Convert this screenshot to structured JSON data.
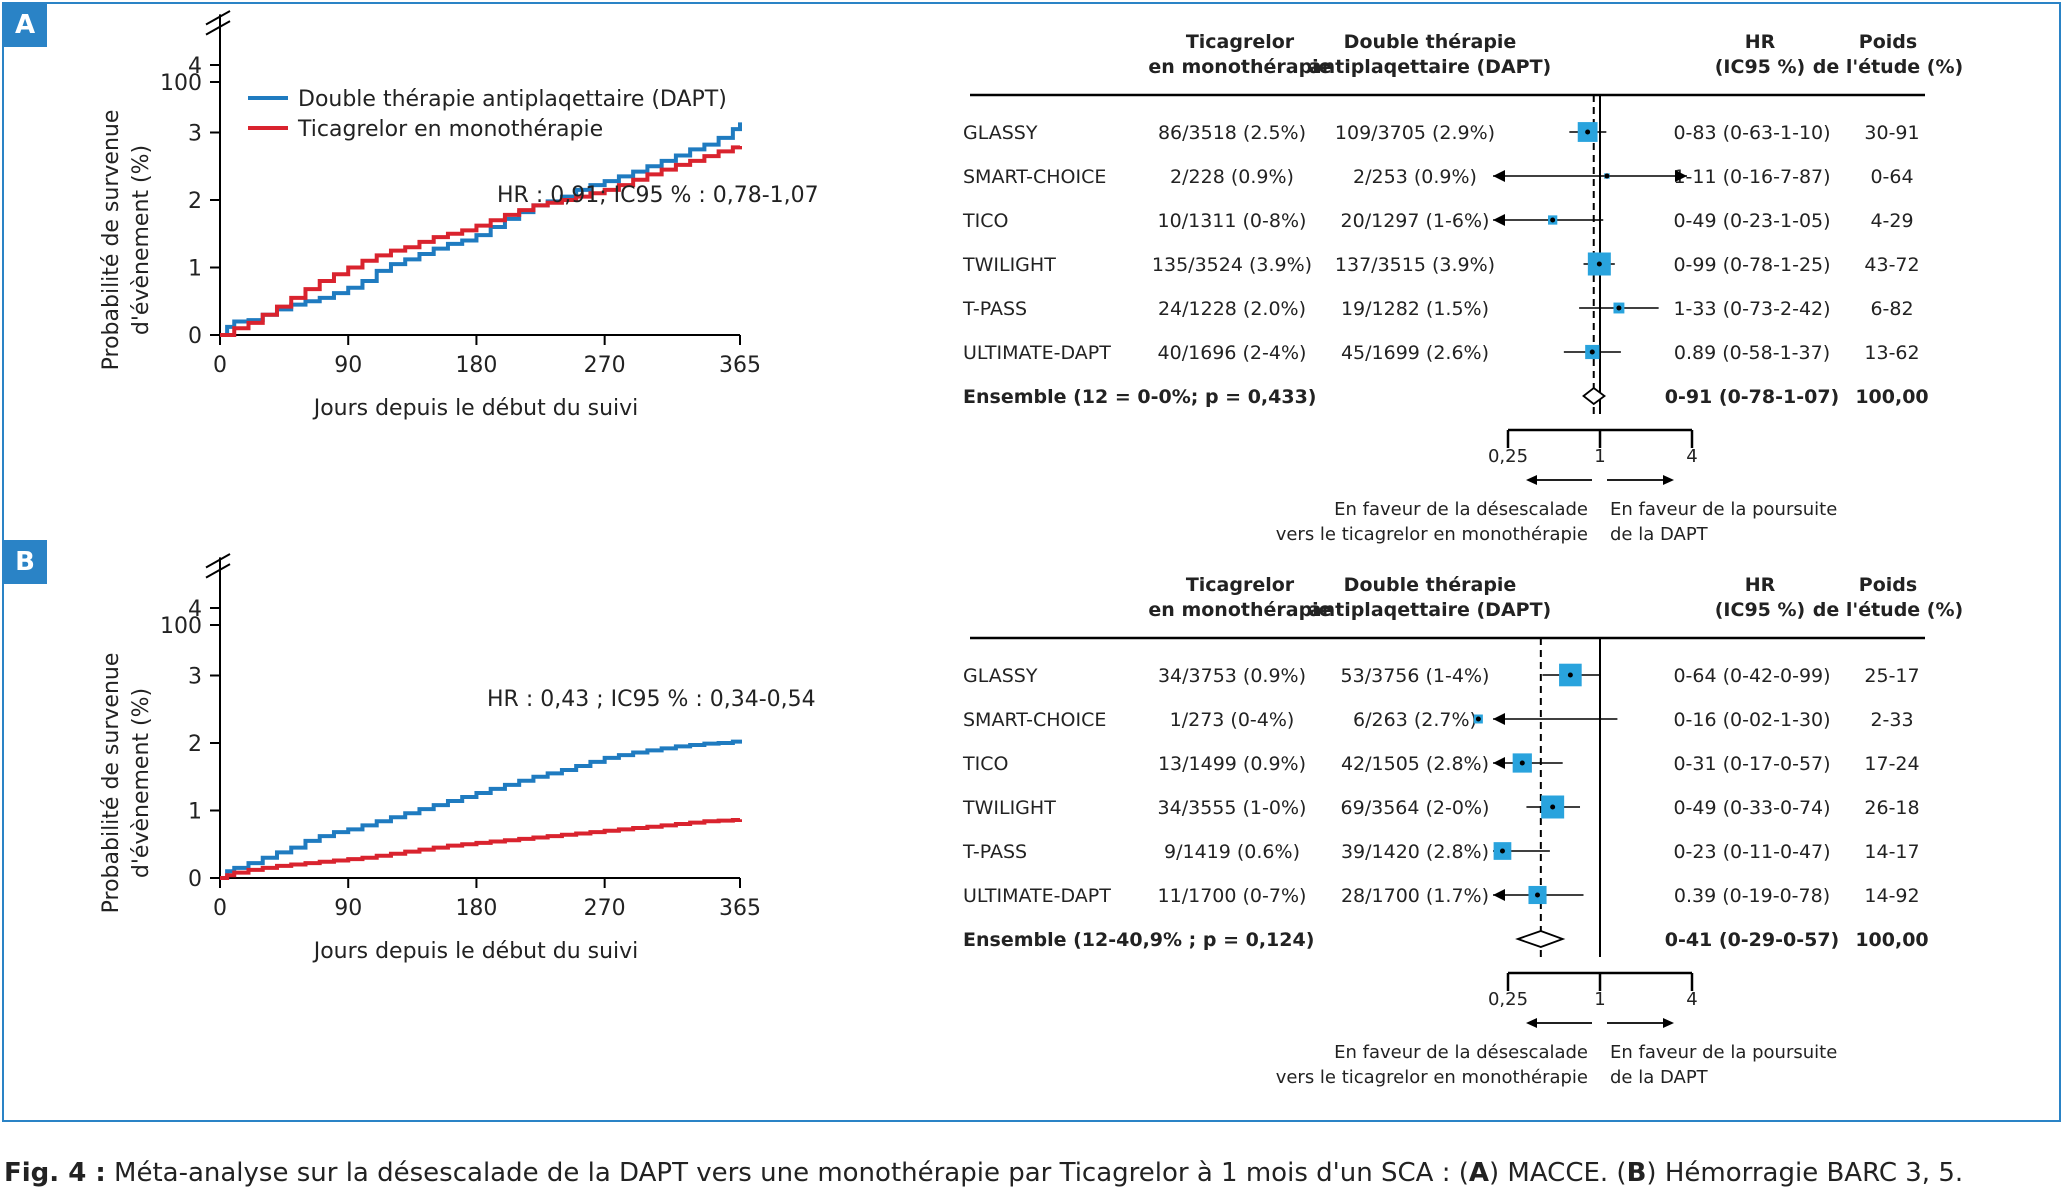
{
  "panels": [
    {
      "label": "A",
      "km": {
        "ylabel_line1": "Probabilité de survenue",
        "ylabel_line2": "d'évènement (%)",
        "xlabel": "Jours depuis le début du suivi",
        "hr_text": "HR : 0,91; IC95 % : 0,78-1,07",
        "legend": [
          "Double thérapie antiplaqettaire (DAPT)",
          "Ticagrelor en monothérapie"
        ]
      },
      "forest": {
        "headers": {
          "ticagrelor": [
            "Ticagrelor",
            "en monothérapie"
          ],
          "dapt": [
            "Double thérapie",
            "antiplaqettaire (DAPT)"
          ],
          "hr": [
            "HR",
            "(IC95 %)"
          ],
          "poids": [
            "Poids",
            "de l'étude (%)"
          ]
        },
        "rows": [
          {
            "study": "GLASSY",
            "tica": "86/3518 (2.5%)",
            "dapt": "109/3705 (2.9%)",
            "hr_text": "0-83 (0-63-1-10)",
            "weight_text": "30-91"
          },
          {
            "study": "SMART-CHOICE",
            "tica": "2/228 (0.9%)",
            "dapt": "2/253 (0.9%)",
            "hr_text": "1-11 (0-16-7-87)",
            "weight_text": "0-64"
          },
          {
            "study": "TICO",
            "tica": "10/1311 (0-8%)",
            "dapt": "20/1297 (1-6%)",
            "hr_text": "0-49 (0-23-1-05)",
            "weight_text": "4-29"
          },
          {
            "study": "TWILIGHT",
            "tica": "135/3524 (3.9%)",
            "dapt": "137/3515 (3.9%)",
            "hr_text": "0-99 (0-78-1-25)",
            "weight_text": "43-72"
          },
          {
            "study": "T-PASS",
            "tica": "24/1228 (2.0%)",
            "dapt": "19/1282 (1.5%)",
            "hr_text": "1-33 (0-73-2-42)",
            "weight_text": "6-82"
          },
          {
            "study": "ULTIMATE-DAPT",
            "tica": "40/1696 (2-4%)",
            "dapt": "45/1699 (2.6%)",
            "hr_text": "0.89 (0-58-1-37)",
            "weight_text": "13-62"
          }
        ],
        "overall": {
          "label": "Ensemble (12 = 0-0%; p = 0,433)",
          "hr_text": "0-91 (0-78-1-07)",
          "weight_text": "100,00"
        },
        "axis_ticks": [
          "0,25",
          "1",
          "4"
        ],
        "favor_left": [
          "En faveur de la désescalade",
          "vers le ticagrelor en monothérapie"
        ],
        "favor_right": [
          "En faveur de la poursuite",
          "de la DAPT"
        ]
      }
    },
    {
      "label": "B",
      "km": {
        "ylabel_line1": "Probabilité de survenue",
        "ylabel_line2": "d'évènement (%)",
        "xlabel": "Jours depuis le début du suivi",
        "hr_text": "HR : 0,43 ; IC95 % : 0,34-0,54",
        "legend": []
      },
      "forest": {
        "headers": {
          "ticagrelor": [
            "Ticagrelor",
            "en monothérapie"
          ],
          "dapt": [
            "Double thérapie",
            "antiplaqettaire (DAPT)"
          ],
          "hr": [
            "HR",
            "(IC95 %)"
          ],
          "poids": [
            "Poids",
            "de l'étude (%)"
          ]
        },
        "rows": [
          {
            "study": "GLASSY",
            "tica": "34/3753 (0.9%)",
            "dapt": "53/3756 (1-4%)",
            "hr_text": "0-64 (0-42-0-99)",
            "weight_text": "25-17"
          },
          {
            "study": "SMART-CHOICE",
            "tica": "1/273 (0-4%)",
            "dapt": "6/263 (2.7%)",
            "hr_text": "0-16 (0-02-1-30)",
            "weight_text": "2-33"
          },
          {
            "study": "TICO",
            "tica": "13/1499 (0.9%)",
            "dapt": "42/1505 (2.8%)",
            "hr_text": "0-31 (0-17-0-57)",
            "weight_text": "17-24"
          },
          {
            "study": "TWILIGHT",
            "tica": "34/3555 (1-0%)",
            "dapt": "69/3564 (2-0%)",
            "hr_text": "0-49 (0-33-0-74)",
            "weight_text": "26-18"
          },
          {
            "study": "T-PASS",
            "tica": "9/1419 (0.6%)",
            "dapt": "39/1420 (2.8%)",
            "hr_text": "0-23 (0-11-0-47)",
            "weight_text": "14-17"
          },
          {
            "study": "ULTIMATE-DAPT",
            "tica": "11/1700 (0-7%)",
            "dapt": "28/1700 (1.7%)",
            "hr_text": "0.39 (0-19-0-78)",
            "weight_text": "14-92"
          }
        ],
        "overall": {
          "label": "Ensemble (12-40,9% ; p = 0,124)",
          "hr_text": "0-41 (0-29-0-57)",
          "weight_text": "100,00"
        },
        "axis_ticks": [
          "0,25",
          "1",
          "4"
        ],
        "favor_left": [
          "En faveur de la désescalade",
          "vers le ticagrelor en monothérapie"
        ],
        "favor_right": [
          "En faveur de la poursuite",
          "de la DAPT"
        ]
      }
    }
  ],
  "caption": {
    "fig_label": "Fig. 4 :",
    "text_1": " Méta-analyse sur la désescalade de la DAPT vers une monothérapie par Ticagrelor à 1 mois d'un SCA : (",
    "bold_a": "A",
    "text_2": ") MACCE. (",
    "bold_b": "B",
    "text_3": ") Hémorragie BARC 3, 5."
  },
  "colors": {
    "frame": "#2a83c6",
    "dapt_line": "#1f7bc0",
    "tica_line": "#d9232e",
    "square": "#29a3dd"
  },
  "chart_data": [
    {
      "type": "line",
      "title": "",
      "xlabel": "Jours depuis le début du suivi",
      "ylabel": "Probabilité de survenue d'évènement (%)",
      "xlim": [
        0,
        365
      ],
      "ylim": [
        0,
        4
      ],
      "x_ticks": [
        0,
        90,
        180,
        270,
        365
      ],
      "y_ticks": [
        0,
        1,
        2,
        3,
        4,
        100
      ],
      "y_axis_break": true,
      "annotation": "HR : 0,91; IC95 % : 0,78-1,07",
      "legend_position": "top-left",
      "series": [
        {
          "name": "Double thérapie antiplaqettaire (DAPT)",
          "color": "#1f7bc0",
          "x": [
            0,
            5,
            10,
            20,
            30,
            40,
            50,
            60,
            70,
            80,
            90,
            100,
            110,
            120,
            130,
            140,
            150,
            160,
            170,
            180,
            190,
            200,
            210,
            220,
            230,
            240,
            250,
            260,
            270,
            280,
            290,
            300,
            310,
            320,
            330,
            340,
            350,
            360,
            365
          ],
          "y": [
            0,
            0.12,
            0.2,
            0.22,
            0.3,
            0.38,
            0.45,
            0.5,
            0.55,
            0.62,
            0.7,
            0.8,
            0.95,
            1.05,
            1.12,
            1.2,
            1.28,
            1.35,
            1.4,
            1.48,
            1.6,
            1.72,
            1.82,
            1.92,
            1.98,
            2.05,
            2.15,
            2.22,
            2.28,
            2.35,
            2.42,
            2.5,
            2.58,
            2.66,
            2.75,
            2.82,
            2.92,
            3.05,
            3.15
          ]
        },
        {
          "name": "Ticagrelor en monothérapie",
          "color": "#d9232e",
          "x": [
            0,
            10,
            20,
            30,
            40,
            50,
            60,
            70,
            80,
            90,
            100,
            110,
            120,
            130,
            140,
            150,
            160,
            170,
            180,
            190,
            200,
            210,
            220,
            230,
            240,
            250,
            260,
            270,
            280,
            290,
            300,
            310,
            320,
            330,
            340,
            350,
            360,
            365
          ],
          "y": [
            0,
            0.1,
            0.18,
            0.3,
            0.42,
            0.55,
            0.68,
            0.8,
            0.9,
            1.0,
            1.1,
            1.18,
            1.25,
            1.3,
            1.38,
            1.45,
            1.5,
            1.55,
            1.62,
            1.7,
            1.78,
            1.85,
            1.92,
            1.96,
            2.0,
            2.05,
            2.1,
            2.15,
            2.22,
            2.3,
            2.38,
            2.45,
            2.52,
            2.58,
            2.65,
            2.72,
            2.78,
            2.8
          ]
        }
      ]
    },
    {
      "type": "scatter",
      "title": "",
      "xlabel": "",
      "x_scale": "log2",
      "xlim": [
        0.25,
        4
      ],
      "x_ticks": [
        0.25,
        1,
        4
      ],
      "reference_line": 1,
      "pooled_dashed_line": 0.91,
      "categories": [
        "GLASSY",
        "SMART-CHOICE",
        "TICO",
        "TWILIGHT",
        "T-PASS",
        "ULTIMATE-DAPT"
      ],
      "hr": [
        0.83,
        1.11,
        0.49,
        0.99,
        1.33,
        0.89
      ],
      "ci_low": [
        0.63,
        0.16,
        0.23,
        0.78,
        0.73,
        0.58
      ],
      "ci_high": [
        1.1,
        7.87,
        1.05,
        1.25,
        2.42,
        1.37
      ],
      "weight_pct": [
        30.91,
        0.64,
        4.29,
        43.72,
        6.82,
        13.62
      ],
      "overall": {
        "hr": 0.91,
        "ci_low": 0.78,
        "ci_high": 1.07,
        "i2_pct": 0.0,
        "p": 0.433
      }
    },
    {
      "type": "line",
      "title": "",
      "xlabel": "Jours depuis le début du suivi",
      "ylabel": "Probabilité de survenue d'évènement (%)",
      "xlim": [
        0,
        365
      ],
      "ylim": [
        0,
        4
      ],
      "x_ticks": [
        0,
        90,
        180,
        270,
        365
      ],
      "y_ticks": [
        0,
        1,
        2,
        3,
        4,
        100
      ],
      "y_axis_break": true,
      "annotation": "HR : 0,43 ; IC95 % : 0,34-0,54",
      "series": [
        {
          "name": "Double thérapie antiplaqettaire (DAPT)",
          "color": "#1f7bc0",
          "x": [
            0,
            5,
            10,
            20,
            30,
            40,
            50,
            60,
            70,
            80,
            90,
            100,
            110,
            120,
            130,
            140,
            150,
            160,
            170,
            180,
            190,
            200,
            210,
            220,
            230,
            240,
            250,
            260,
            270,
            280,
            290,
            300,
            310,
            320,
            330,
            340,
            350,
            360,
            365
          ],
          "y": [
            0,
            0.1,
            0.15,
            0.22,
            0.3,
            0.38,
            0.45,
            0.55,
            0.62,
            0.68,
            0.72,
            0.78,
            0.84,
            0.9,
            0.96,
            1.02,
            1.08,
            1.14,
            1.2,
            1.26,
            1.32,
            1.38,
            1.44,
            1.5,
            1.55,
            1.6,
            1.66,
            1.72,
            1.78,
            1.82,
            1.86,
            1.89,
            1.92,
            1.95,
            1.97,
            1.99,
            2.0,
            2.02,
            2.05
          ]
        },
        {
          "name": "Ticagrelor en monothérapie",
          "color": "#d9232e",
          "x": [
            0,
            5,
            10,
            20,
            30,
            40,
            50,
            60,
            70,
            80,
            90,
            100,
            110,
            120,
            130,
            140,
            150,
            160,
            170,
            180,
            190,
            200,
            210,
            220,
            230,
            240,
            250,
            260,
            270,
            280,
            290,
            300,
            310,
            320,
            330,
            340,
            350,
            360,
            365
          ],
          "y": [
            0,
            0.04,
            0.08,
            0.12,
            0.15,
            0.18,
            0.2,
            0.22,
            0.24,
            0.26,
            0.28,
            0.3,
            0.33,
            0.36,
            0.39,
            0.42,
            0.45,
            0.48,
            0.5,
            0.52,
            0.54,
            0.56,
            0.58,
            0.6,
            0.62,
            0.64,
            0.66,
            0.68,
            0.7,
            0.72,
            0.74,
            0.76,
            0.78,
            0.8,
            0.82,
            0.84,
            0.85,
            0.86,
            0.87
          ]
        }
      ]
    },
    {
      "type": "scatter",
      "title": "",
      "xlabel": "",
      "x_scale": "log2",
      "xlim": [
        0.25,
        4
      ],
      "x_ticks": [
        0.25,
        1,
        4
      ],
      "reference_line": 1,
      "pooled_dashed_line": 0.41,
      "categories": [
        "GLASSY",
        "SMART-CHOICE",
        "TICO",
        "TWILIGHT",
        "T-PASS",
        "ULTIMATE-DAPT"
      ],
      "hr": [
        0.64,
        0.16,
        0.31,
        0.49,
        0.23,
        0.39
      ],
      "ci_low": [
        0.42,
        0.02,
        0.17,
        0.33,
        0.11,
        0.19
      ],
      "ci_high": [
        0.99,
        1.3,
        0.57,
        0.74,
        0.47,
        0.78
      ],
      "weight_pct": [
        25.17,
        2.33,
        17.24,
        26.18,
        14.17,
        14.92
      ],
      "overall": {
        "hr": 0.41,
        "ci_low": 0.29,
        "ci_high": 0.57,
        "i2_pct": 40.9,
        "p": 0.124
      }
    }
  ]
}
